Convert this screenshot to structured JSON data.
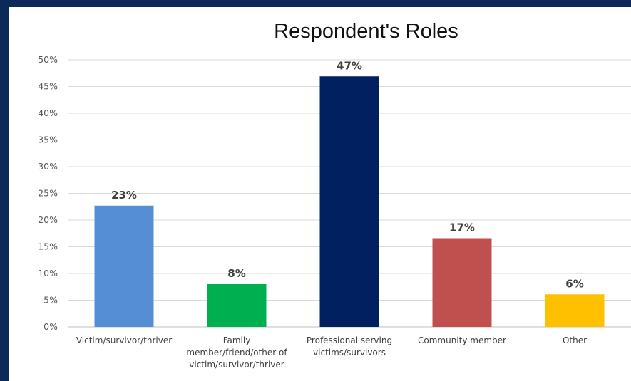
{
  "chart_data": {
    "type": "bar",
    "title": "Respondent's Roles",
    "categories": [
      [
        "Victim/survivor/thriver"
      ],
      [
        "Family",
        "member/friend/other of",
        "victim/survivor/thriver"
      ],
      [
        "Professional serving",
        "victims/survivors"
      ],
      [
        "Community member"
      ],
      [
        "Other"
      ]
    ],
    "values": [
      22.7,
      8.0,
      46.9,
      16.6,
      6.1
    ],
    "data_labels": [
      "23%",
      "8%",
      "47%",
      "17%",
      "6%"
    ],
    "colors": [
      "#558ed5",
      "#00b050",
      "#002060",
      "#c0504d",
      "#ffc000"
    ],
    "ylim": [
      0,
      50
    ],
    "yticks": [
      "0%",
      "5%",
      "10%",
      "15%",
      "20%",
      "25%",
      "30%",
      "35%",
      "40%",
      "45%",
      "50%"
    ],
    "grid": true,
    "xlabel": "",
    "ylabel": ""
  }
}
